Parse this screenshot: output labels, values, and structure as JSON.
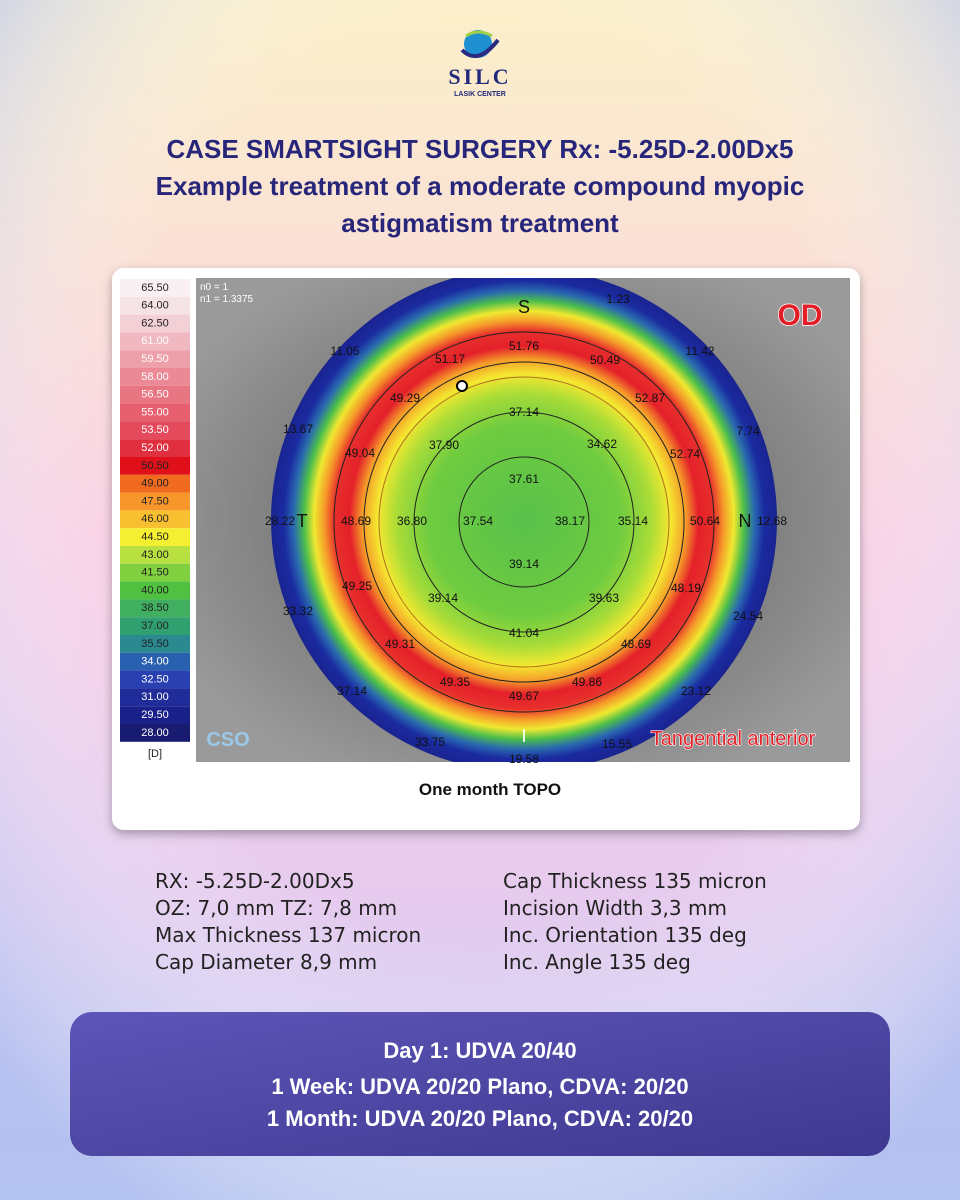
{
  "logo": {
    "name": "SILC",
    "tagline": "LASIK CENTER"
  },
  "title": [
    "CASE SMARTSIGHT SURGERY Rx: -5.25D-2.00Dx5",
    "Example treatment of a moderate compound myopic",
    "astigmatism treatment"
  ],
  "topography": {
    "scale": [
      "65.50",
      "64.00",
      "62.50",
      "61.00",
      "59.50",
      "58.00",
      "56.50",
      "55.00",
      "53.50",
      "52.00",
      "50.50",
      "49.00",
      "47.50",
      "46.00",
      "44.50",
      "43.00",
      "41.50",
      "40.00",
      "38.50",
      "37.00",
      "35.50",
      "34.00",
      "32.50",
      "31.00",
      "29.50",
      "28.00"
    ],
    "unit": "[D]",
    "indices": [
      "n0 = 1",
      "n1 = 1.3375"
    ],
    "directions": {
      "superior": "S",
      "temporal": "T",
      "nasal": "N",
      "inferior": "I"
    },
    "eye": "OD",
    "brand": "CSO",
    "map_type": "Tangential anterior",
    "readings": [
      "1.23",
      "11.05",
      "51.17",
      "51.76",
      "50.49",
      "11.42",
      "49.29",
      "52.87",
      "37.14",
      "13.67",
      "7.74",
      "37.90",
      "34.62",
      "49.04",
      "52.74",
      "37.61",
      "28.22",
      "48.69",
      "36.80",
      "37.54",
      "38.17",
      "35.14",
      "50.64",
      "12.68",
      "39.14",
      "49.25",
      "48.19",
      "39.14",
      "39.63",
      "33.32",
      "24.54",
      "41.04",
      "49.31",
      "48.69",
      "37.14",
      "49.35",
      "49.67",
      "49.86",
      "23.12",
      "33.75",
      "19.58",
      "15.55"
    ],
    "caption": "One month TOPO"
  },
  "parameters": {
    "left": [
      "RX: -5.25D-2.00Dx5",
      "OZ: 7,0 mm TZ: 7,8 mm",
      "Max Thickness 137 micron",
      "Cap Diameter 8,9 mm"
    ],
    "right": [
      "Cap Thickness 135 micron",
      "Incision Width 3,3 mm",
      "Inc. Orientation 135 deg",
      "Inc. Angle 135 deg"
    ]
  },
  "results": [
    "Day 1: UDVA 20/40",
    "1 Week: UDVA 20/20 Plano, CDVA: 20/20",
    "1 Month: UDVA 20/20 Plano, CDVA: 20/20"
  ]
}
